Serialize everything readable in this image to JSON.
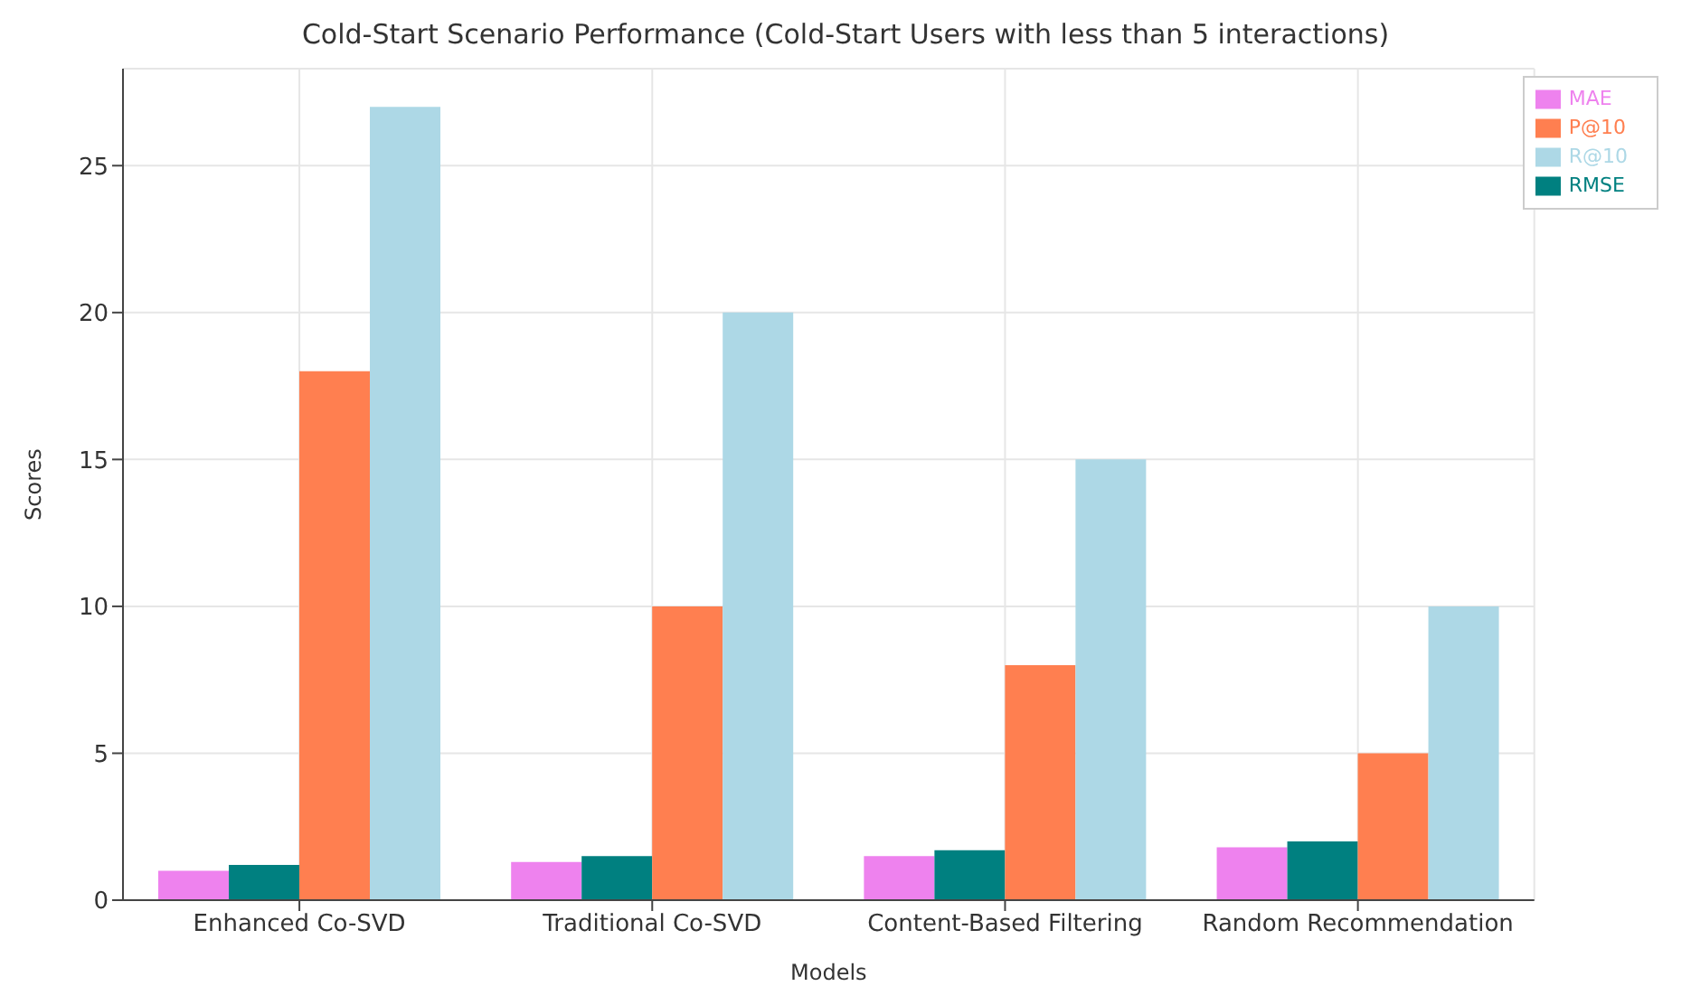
{
  "chart_data": {
    "type": "bar",
    "title": "Cold-Start Scenario Performance (Cold-Start Users with less than 5 interactions)",
    "xlabel": "Models",
    "ylabel": "Scores",
    "categories": [
      "Enhanced Co-SVD",
      "Traditional Co-SVD",
      "Content-Based Filtering",
      "Random Recommendation"
    ],
    "series": [
      {
        "name": "MAE",
        "color": "#ee82ee",
        "values": [
          1.0,
          1.3,
          1.5,
          1.8
        ]
      },
      {
        "name": "RMSE",
        "color": "#008080",
        "values": [
          1.2,
          1.5,
          1.7,
          2.0
        ]
      },
      {
        "name": "P@10",
        "color": "#ff7f50",
        "values": [
          18,
          10,
          8,
          5
        ]
      },
      {
        "name": "R@10",
        "color": "#add8e6",
        "values": [
          27,
          20,
          15,
          10
        ]
      }
    ],
    "ylim": [
      0,
      28.3
    ],
    "yticks": [
      0,
      5,
      10,
      15,
      20,
      25
    ],
    "grid": true,
    "legend": "top right"
  }
}
